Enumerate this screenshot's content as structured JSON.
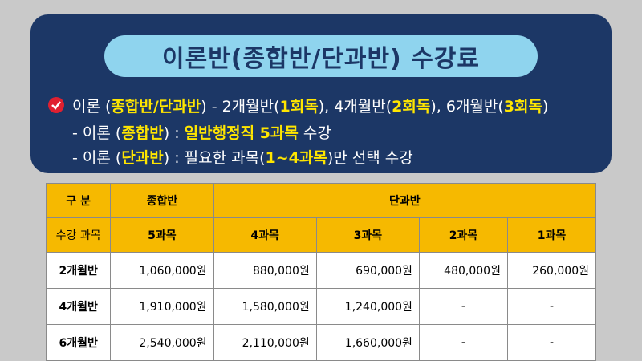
{
  "header": {
    "title": "이론반(종합반/단과반) 수강료"
  },
  "bullets": [
    [
      {
        "text": "이론 (",
        "highlight": false
      },
      {
        "text": "종합반/단과반",
        "highlight": true
      },
      {
        "text": ") - 2개월반(",
        "highlight": false
      },
      {
        "text": "1회독",
        "highlight": true
      },
      {
        "text": "), 4개월반(",
        "highlight": false
      },
      {
        "text": "2회독",
        "highlight": true
      },
      {
        "text": "), 6개월반(",
        "highlight": false
      },
      {
        "text": "3회독",
        "highlight": true
      },
      {
        "text": ")",
        "highlight": false
      }
    ],
    [
      {
        "text": "- 이론 (",
        "highlight": false
      },
      {
        "text": "종합반",
        "highlight": true
      },
      {
        "text": ") : ",
        "highlight": false
      },
      {
        "text": "일반행정직 5과목",
        "highlight": true
      },
      {
        "text": " 수강",
        "highlight": false
      }
    ],
    [
      {
        "text": "- 이론 (",
        "highlight": false
      },
      {
        "text": "단과반",
        "highlight": true
      },
      {
        "text": ") : 필요한 과목(",
        "highlight": false
      },
      {
        "text": "1~4과목",
        "highlight": true
      },
      {
        "text": ")만 선택 수강",
        "highlight": false
      }
    ]
  ],
  "table": {
    "header": [
      [
        "구 분",
        "종합반",
        "단과반"
      ],
      [
        "수강 과목",
        "5과목",
        "4과목",
        "3과목",
        "2과목",
        "1과목"
      ]
    ],
    "rows": [
      [
        "2개월반",
        "1,060,000원",
        "880,000원",
        "690,000원",
        "480,000원",
        "260,000원"
      ],
      [
        "4개월반",
        "1,910,000원",
        "1,580,000원",
        "1,240,000원",
        "-",
        "-"
      ],
      [
        "6개월반",
        "2,540,000원",
        "2,110,000원",
        "1,660,000원",
        "-",
        "-"
      ]
    ]
  }
}
